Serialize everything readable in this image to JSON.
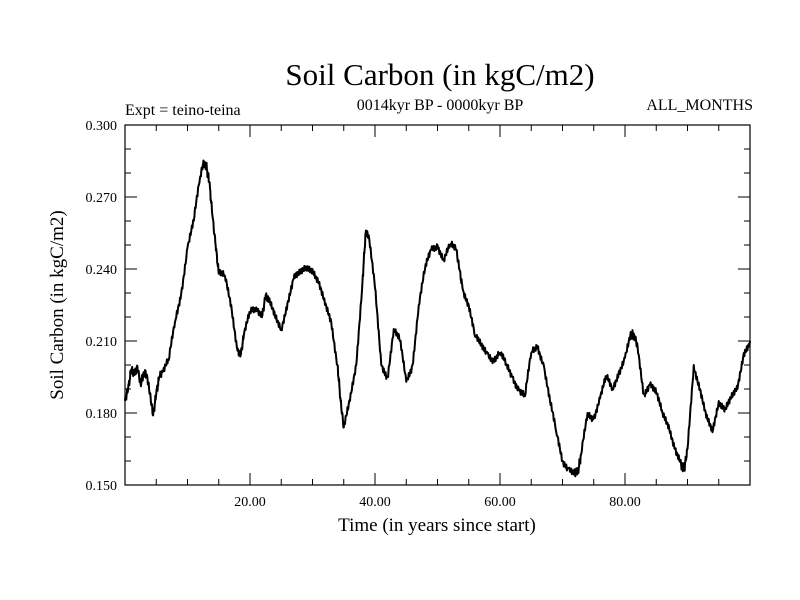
{
  "chart_data": {
    "type": "line",
    "title": "Soil Carbon (in kgC/m2)",
    "subtitle_left": "Expt = teino-teina",
    "subtitle_center": "0014kyr BP - 0000kyr BP",
    "subtitle_right": "ALL_MONTHS",
    "xlabel": "Time (in years since start)",
    "ylabel": "Soil Carbon (in kgC/m2)",
    "xlim": [
      0,
      100
    ],
    "ylim": [
      0.15,
      0.3
    ],
    "xticks": [
      20,
      40,
      60,
      80
    ],
    "xtick_labels": [
      "20.00",
      "40.00",
      "60.00",
      "80.00"
    ],
    "yticks": [
      0.15,
      0.18,
      0.21,
      0.24,
      0.27,
      0.3
    ],
    "ytick_labels": [
      "0.150",
      "0.180",
      "0.210",
      "0.240",
      "0.270",
      "0.300"
    ],
    "grid": false,
    "series": [
      {
        "name": "Soil Carbon",
        "color": "#000000",
        "x": [
          0,
          0.5,
          1,
          1.5,
          2,
          2.5,
          3,
          3.5,
          4,
          4.5,
          5,
          5.5,
          6,
          7,
          8,
          9,
          10,
          11,
          12,
          12.5,
          13,
          13.5,
          14,
          14.5,
          15,
          16,
          17,
          18,
          18.5,
          19,
          20,
          21,
          22,
          22.5,
          23,
          24,
          25,
          26,
          27,
          28,
          29,
          30,
          31,
          32,
          33,
          34,
          34.5,
          35,
          36,
          37,
          38,
          38.5,
          39,
          40,
          41,
          42,
          43,
          44,
          45,
          46,
          47,
          48,
          49,
          50,
          51,
          52,
          53,
          53.5,
          54,
          55,
          56,
          57,
          58,
          59,
          60,
          61,
          62,
          63,
          64,
          65,
          66,
          67,
          68,
          69,
          70,
          71,
          72,
          72.5,
          73,
          74,
          75,
          76,
          77,
          78,
          79,
          80,
          81,
          81.5,
          82,
          83,
          84,
          85,
          86,
          87,
          88,
          89,
          89.5,
          90,
          91,
          92,
          93,
          94,
          95,
          96,
          97,
          98,
          99,
          100
        ],
        "values": [
          0.185,
          0.19,
          0.198,
          0.196,
          0.199,
          0.192,
          0.197,
          0.196,
          0.188,
          0.179,
          0.188,
          0.195,
          0.197,
          0.202,
          0.218,
          0.23,
          0.249,
          0.26,
          0.278,
          0.284,
          0.283,
          0.276,
          0.262,
          0.25,
          0.238,
          0.237,
          0.225,
          0.206,
          0.204,
          0.212,
          0.222,
          0.224,
          0.221,
          0.229,
          0.227,
          0.22,
          0.215,
          0.226,
          0.236,
          0.238,
          0.241,
          0.24,
          0.234,
          0.225,
          0.218,
          0.2,
          0.185,
          0.174,
          0.185,
          0.2,
          0.235,
          0.255,
          0.254,
          0.232,
          0.2,
          0.195,
          0.215,
          0.21,
          0.193,
          0.2,
          0.225,
          0.24,
          0.248,
          0.25,
          0.244,
          0.25,
          0.248,
          0.24,
          0.232,
          0.225,
          0.212,
          0.208,
          0.205,
          0.202,
          0.205,
          0.2,
          0.195,
          0.19,
          0.187,
          0.205,
          0.208,
          0.2,
          0.185,
          0.172,
          0.16,
          0.157,
          0.155,
          0.156,
          0.163,
          0.18,
          0.178,
          0.186,
          0.195,
          0.19,
          0.197,
          0.203,
          0.213,
          0.212,
          0.208,
          0.188,
          0.192,
          0.188,
          0.18,
          0.175,
          0.165,
          0.158,
          0.157,
          0.165,
          0.2,
          0.19,
          0.178,
          0.172,
          0.185,
          0.182,
          0.186,
          0.19,
          0.205,
          0.21
        ]
      }
    ]
  }
}
